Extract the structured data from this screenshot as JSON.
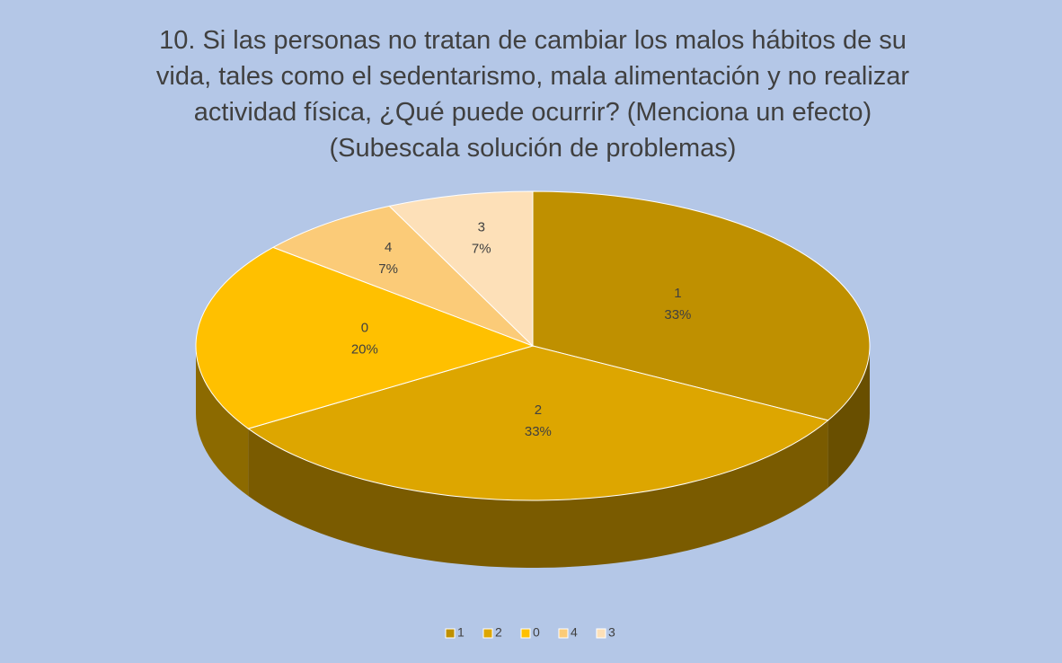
{
  "chart_data": {
    "type": "pie",
    "title": [
      "10. Si las personas no tratan de cambiar los malos hábitos de su",
      "vida, tales como el sedentarismo, mala alimentación y no realizar",
      "actividad física, ¿Qué puede ocurrir? (Menciona un efecto)",
      "(Subescala solución de problemas)"
    ],
    "categories": [
      "1",
      "2",
      "0",
      "4",
      "3"
    ],
    "values": [
      33,
      33,
      20,
      7,
      7
    ],
    "value_labels": [
      "33%",
      "33%",
      "20%",
      "7%",
      "7%"
    ],
    "colors": [
      "#bf9000",
      "#dda600",
      "#ffc000",
      "#fbcb78",
      "#fde0b8"
    ],
    "legend": "bottom"
  }
}
